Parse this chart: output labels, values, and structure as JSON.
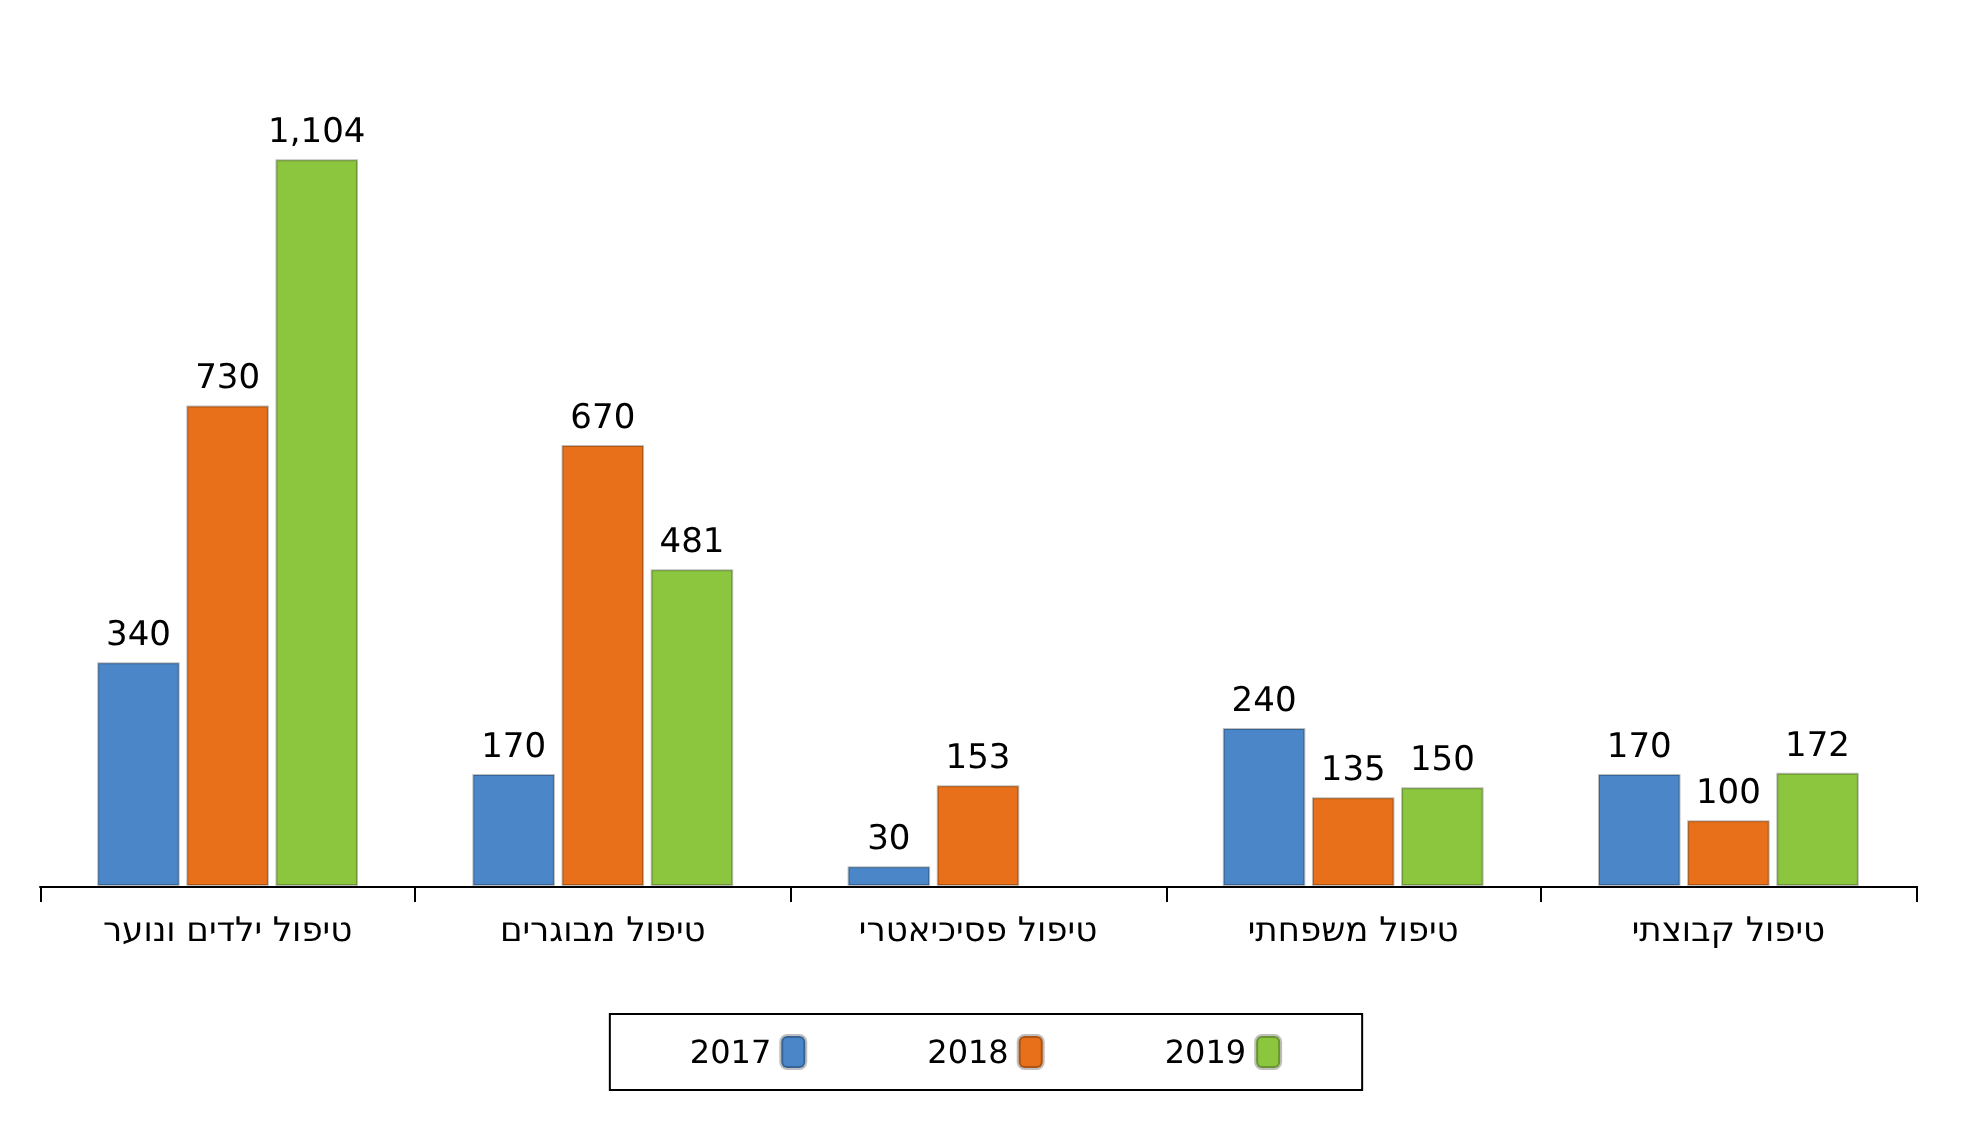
{
  "chart_data": {
    "type": "bar",
    "categories": [
      "טיפול ילדים ונוער",
      "טיפול מבוגרים",
      "טיפול פסיכיאטרי",
      "טיפול משפחתי",
      "טיפול קבוצתי"
    ],
    "series": [
      {
        "name": "2017",
        "color": "#4a86c8",
        "values": [
          340,
          170,
          30,
          240,
          170
        ],
        "value_labels": [
          "340",
          "170",
          "30",
          "240",
          "170"
        ]
      },
      {
        "name": "2018",
        "color": "#e8701a",
        "values": [
          730,
          670,
          153,
          135,
          100
        ],
        "value_labels": [
          "730",
          "670",
          "153",
          "135",
          "100"
        ]
      },
      {
        "name": "2019",
        "color": "#8cc63f",
        "values": [
          1104,
          481,
          null,
          150,
          172
        ],
        "value_labels": [
          "1,104",
          "481",
          null,
          "150",
          "172"
        ]
      }
    ],
    "legend": "bottom",
    "grid": false
  }
}
